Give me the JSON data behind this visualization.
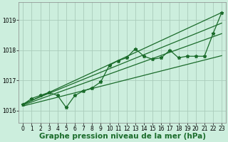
{
  "title": "Graphe pression niveau de la mer (hPa)",
  "background_color": "#cceedd",
  "grid_color": "#aaccbb",
  "line_color": "#1a6b2a",
  "x_ticks": [
    0,
    1,
    2,
    3,
    4,
    5,
    6,
    7,
    8,
    9,
    10,
    11,
    12,
    13,
    14,
    15,
    16,
    17,
    18,
    19,
    20,
    21,
    22,
    23
  ],
  "y_ticks": [
    1016,
    1017,
    1018,
    1019
  ],
  "ylim": [
    1015.6,
    1019.6
  ],
  "xlim": [
    -0.5,
    23.5
  ],
  "jagged_series": [
    1016.2,
    1016.4,
    1016.5,
    1016.6,
    1016.5,
    1016.1,
    1016.5,
    1016.65,
    1016.75,
    1016.95,
    1017.5,
    1017.65,
    1017.75,
    1018.05,
    1017.8,
    1017.7,
    1017.75,
    1018.0,
    1017.75,
    1017.8,
    1017.8,
    1017.8,
    1018.55,
    1019.25
  ],
  "straight_lines": [
    [
      1016.2,
      1019.25
    ],
    [
      1016.15,
      1017.82
    ],
    [
      1016.18,
      1018.55
    ],
    [
      1016.22,
      1018.9
    ]
  ],
  "marker": "*",
  "marker_size": 3.5,
  "linewidth": 0.9,
  "title_fontsize": 7.5,
  "tick_fontsize": 5.5
}
